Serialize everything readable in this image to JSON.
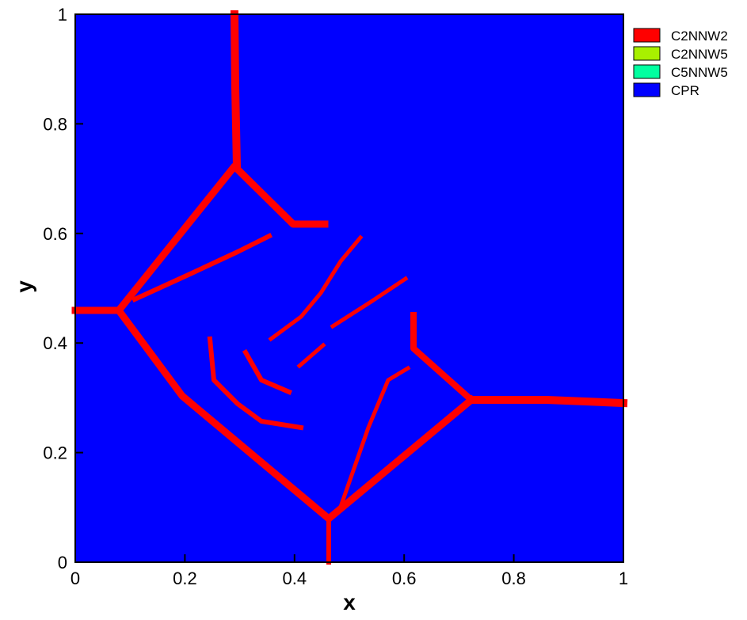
{
  "chart_data": {
    "type": "contour",
    "xlabel": "x",
    "ylabel": "y",
    "xlim": [
      0,
      1
    ],
    "ylim": [
      0,
      1
    ],
    "xticks": [
      0,
      0.2,
      0.4,
      0.6,
      0.8,
      1
    ],
    "yticks": [
      0,
      0.2,
      0.4,
      0.6,
      0.8,
      1
    ],
    "series": [
      {
        "name": "C2NNW2",
        "color": "#ff0000"
      },
      {
        "name": "C2NNW5",
        "color": "#a8f000"
      },
      {
        "name": "C5NNW5",
        "color": "#00ffa0"
      },
      {
        "name": "CPR",
        "color": "#0000ff"
      }
    ]
  }
}
